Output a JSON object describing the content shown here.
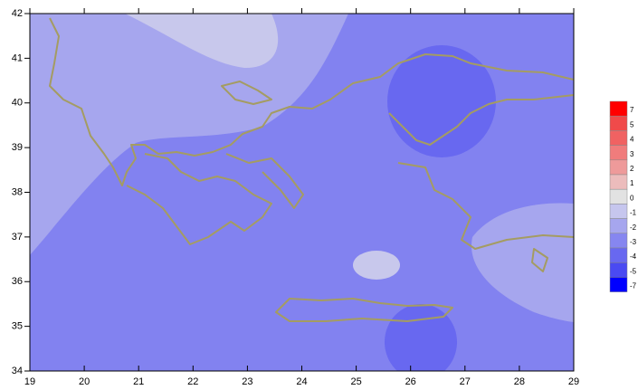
{
  "map": {
    "xlim": [
      19,
      29
    ],
    "ylim": [
      34,
      42
    ],
    "xticks": [
      19,
      20,
      21,
      22,
      23,
      24,
      25,
      26,
      27,
      28,
      29
    ],
    "yticks": [
      34,
      35,
      36,
      37,
      38,
      39,
      40,
      41,
      42
    ],
    "colorbar": {
      "labels": [
        7,
        5,
        4,
        3,
        2,
        1,
        0,
        -1,
        -2,
        -3,
        -4,
        -5,
        -7
      ],
      "colors": [
        "#ff0000",
        "#f04a4a",
        "#f06262",
        "#f07c7c",
        "#ee9a9a",
        "#ecbcbc",
        "#e2e2e2",
        "#c6c6ee",
        "#a6a6ee",
        "#8686f0",
        "#6868f0",
        "#4a4af2",
        "#0000ff"
      ]
    }
  }
}
